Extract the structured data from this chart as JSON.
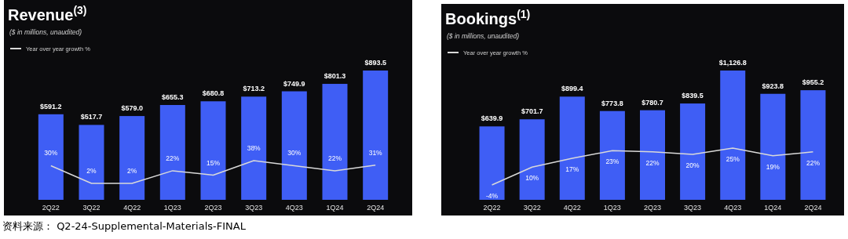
{
  "chart_data": [
    {
      "type": "bar",
      "title": "Revenue$^{(3)}$",
      "subtitle": "($ in millions, unaudited)",
      "categories": [
        "2Q22",
        "3Q22",
        "4Q22",
        "1Q23",
        "2Q23",
        "3Q23",
        "4Q23",
        "1Q24",
        "2Q24"
      ],
      "series": [
        {
          "color": "#3f5ef5",
          "values": [
            591.2,
            517.7,
            579.0,
            655.3,
            680.8,
            713.2,
            749.9,
            801.3,
            893.5
          ],
          "value_labels": [
            "$591.2",
            "$517.7",
            "$579.0",
            "$655.3",
            "$680.8",
            "$713.2",
            "$749.9",
            "$801.3",
            "$893.5"
          ]
        },
        {
          "type": "line",
          "name": "Year over year growth %",
          "color": "#d9d9d9",
          "axis": "y2",
          "values": [
            30,
            2,
            2,
            22,
            15,
            38,
            30,
            22,
            31
          ],
          "value_labels": [
            "30%",
            "2%",
            "2%",
            "22%",
            "15%",
            "38%",
            "30%",
            "22%",
            "31%"
          ]
        }
      ],
      "legend": "top left",
      "annotations": [
        "资料来源： Q2-24-Supplemental-Materials-FINAL"
      ]
    },
    {
      "type": "bar",
      "title": "Bookings$^{(1)}$",
      "subtitle": "($ in millions, unaudited)",
      "categories": [
        "2Q22",
        "3Q22",
        "4Q22",
        "1Q23",
        "2Q23",
        "3Q23",
        "4Q23",
        "1Q24",
        "2Q24"
      ],
      "series": [
        {
          "color": "#3f5ef5",
          "values": [
            639.9,
            701.7,
            899.4,
            773.8,
            780.7,
            839.5,
            1126.8,
            923.8,
            955.2
          ],
          "value_labels": [
            "$639.9",
            "$701.7",
            "$899.4",
            "$773.8",
            "$780.7",
            "$839.5",
            "$1,126.8",
            "$923.8",
            "$955.2"
          ]
        },
        {
          "type": "line",
          "name": "Year over year growth %",
          "color": "#d9d9d9",
          "axis": "y2",
          "values": [
            -4,
            10,
            17,
            23,
            22,
            20,
            25,
            19,
            22
          ],
          "value_labels": [
            "-4%",
            "10%",
            "17%",
            "23%",
            "22%",
            "20%",
            "25%",
            "19%",
            "22%"
          ]
        }
      ],
      "legend": "top left"
    }
  ]
}
